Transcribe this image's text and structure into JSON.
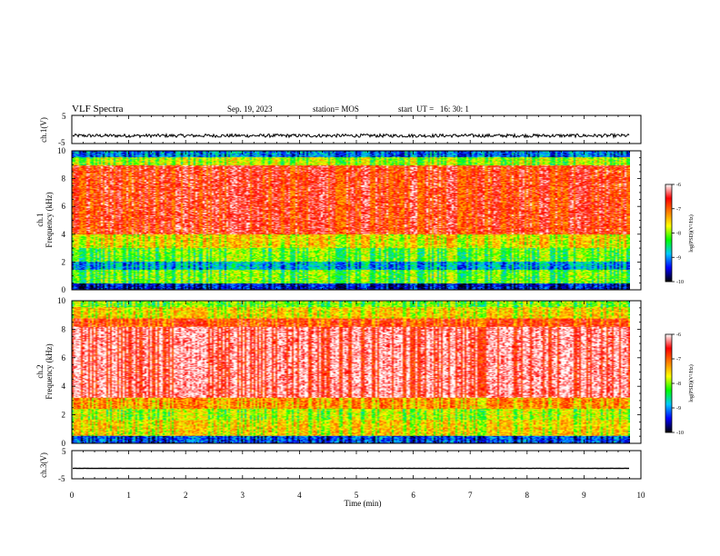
{
  "header": {
    "title": "VLF Spectra",
    "date": "Sep. 19, 2023",
    "station": "station= MOS",
    "start_ut": "start  UT =   16: 30: 1"
  },
  "chart_data": [
    {
      "type": "line",
      "panel": "ch1-waveform",
      "ylabel": "ch.1(V)",
      "ylim": [
        -5,
        5
      ],
      "yticks": [
        5,
        -5
      ],
      "xlim": [
        0,
        10
      ],
      "note": "noisy trace around -2.2 V over 0–9.8 min",
      "trace_level": -2.2
    },
    {
      "type": "heatmap",
      "panel": "ch1-spectrogram",
      "ylabel_lines": [
        "ch.1",
        "Frequency (kHz)"
      ],
      "ylim": [
        0,
        10
      ],
      "yticks": [
        0,
        2,
        4,
        6,
        8,
        10
      ],
      "xlim": [
        0,
        10
      ],
      "colorbar": {
        "label": "log(PSD)(V²/Hz)",
        "range": [
          -10,
          -6
        ],
        "ticks": [
          -6,
          -7,
          -8,
          -9,
          -10
        ]
      }
    },
    {
      "type": "heatmap",
      "panel": "ch2-spectrogram",
      "ylabel_lines": [
        "ch.2",
        "Frequency (kHz)"
      ],
      "ylim": [
        0,
        10
      ],
      "yticks": [
        0,
        2,
        4,
        6,
        8,
        10
      ],
      "xlim": [
        0,
        10
      ],
      "colorbar": {
        "label": "log(PSD)(V²/Hz)",
        "range": [
          -10,
          -6
        ],
        "ticks": [
          -6,
          -7,
          -8,
          -9,
          -10
        ]
      }
    },
    {
      "type": "line",
      "panel": "ch3-waveform",
      "ylabel": "ch.3(V)",
      "ylim": [
        -5,
        5
      ],
      "yticks": [
        5,
        -5
      ],
      "xlim": [
        0,
        10
      ],
      "trace_level": -1.3
    }
  ],
  "xaxis": {
    "label": "Time (min)",
    "ticks": [
      0,
      1,
      2,
      3,
      4,
      5,
      6,
      7,
      8,
      9,
      10
    ]
  },
  "colors": {
    "colormap": [
      "#000000",
      "#0000ff",
      "#00c8ff",
      "#00ff00",
      "#ffff00",
      "#ff7f00",
      "#ff0000",
      "#ffffff"
    ],
    "trace": "#000000"
  }
}
